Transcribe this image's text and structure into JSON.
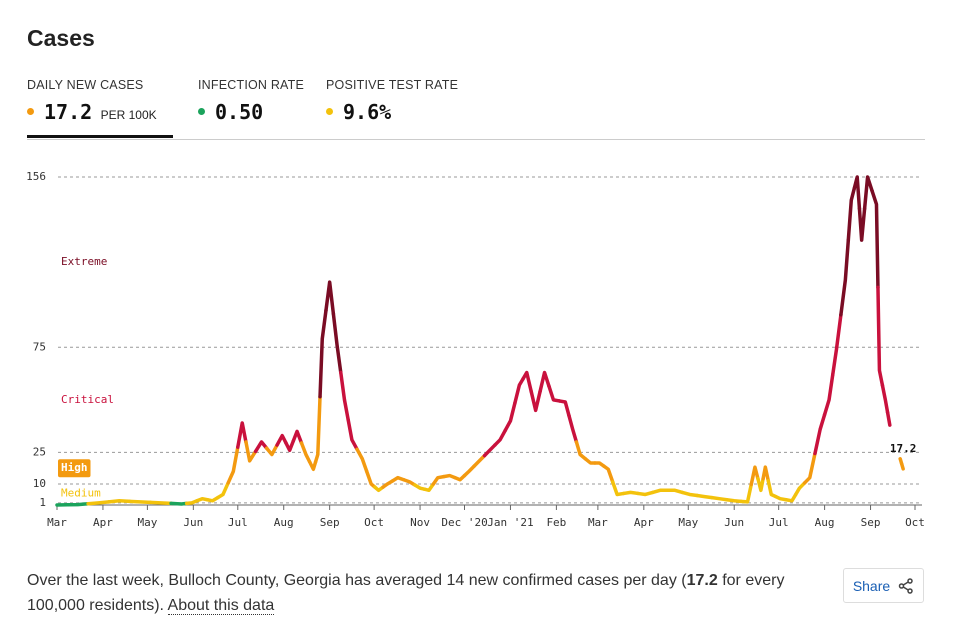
{
  "header": {
    "title": "Cases"
  },
  "tabs": [
    {
      "label": "DAILY NEW CASES",
      "value": "17.2",
      "unit": "PER 100K"
    },
    {
      "label": "INFECTION RATE",
      "value": "0.50"
    },
    {
      "label": "POSITIVE TEST RATE",
      "value": "9.6%"
    }
  ],
  "chart_data": {
    "type": "line",
    "x": [
      0,
      14,
      28,
      42,
      56,
      70,
      84,
      91,
      98,
      105,
      112,
      119,
      125,
      130,
      138,
      145,
      152,
      157,
      162,
      168,
      173,
      176,
      179,
      184,
      189,
      194,
      199,
      206,
      212,
      217,
      223,
      230,
      238,
      245,
      251,
      257,
      265,
      272,
      278,
      285,
      292,
      299,
      306,
      312,
      317,
      323,
      329,
      335,
      343,
      348,
      353,
      360,
      366,
      372,
      378,
      387,
      397,
      407,
      417,
      427,
      437,
      447,
      457,
      466,
      471,
      475,
      478,
      482,
      488,
      496,
      501,
      508,
      515,
      521,
      526,
      532,
      536,
      540,
      543,
      547,
      553,
      555,
      559,
      562,
      566,
      569,
      571
    ],
    "values": [
      0,
      0.2,
      1,
      2,
      1.5,
      1,
      0.5,
      1,
      3,
      2,
      5,
      16,
      39,
      21,
      30,
      24,
      33,
      26,
      35,
      24,
      17,
      24,
      79,
      106,
      76,
      50,
      31,
      22,
      10,
      7,
      10,
      13,
      11,
      8,
      7,
      13,
      14,
      12,
      16,
      21,
      26,
      31,
      40,
      57,
      63,
      45,
      63,
      50,
      49,
      36,
      24,
      20,
      20,
      17,
      5,
      6,
      5,
      7,
      7,
      5,
      4,
      3,
      2,
      1.5,
      18,
      7,
      18,
      5,
      3,
      2,
      8,
      13,
      36,
      50,
      74,
      107,
      145,
      156,
      126,
      156,
      143,
      64,
      50,
      38,
      null,
      22,
      17.2
    ],
    "xlim": [
      0,
      579
    ],
    "xticks": [
      {
        "value": 0,
        "label": "Mar"
      },
      {
        "value": 31,
        "label": "Apr"
      },
      {
        "value": 61,
        "label": "May"
      },
      {
        "value": 92,
        "label": "Jun"
      },
      {
        "value": 122,
        "label": "Jul"
      },
      {
        "value": 153,
        "label": "Aug"
      },
      {
        "value": 184,
        "label": "Sep"
      },
      {
        "value": 214,
        "label": "Oct"
      },
      {
        "value": 245,
        "label": "Nov"
      },
      {
        "value": 275,
        "label": "Dec '20"
      },
      {
        "value": 306,
        "label": "Jan '21"
      },
      {
        "value": 337,
        "label": "Feb"
      },
      {
        "value": 365,
        "label": "Mar"
      },
      {
        "value": 396,
        "label": "Apr"
      },
      {
        "value": 426,
        "label": "May"
      },
      {
        "value": 457,
        "label": "Jun"
      },
      {
        "value": 487,
        "label": "Jul"
      },
      {
        "value": 518,
        "label": "Aug"
      },
      {
        "value": 549,
        "label": "Sep"
      },
      {
        "value": 579,
        "label": "Oct"
      }
    ],
    "ylim": [
      0,
      156
    ],
    "yticks": [
      1,
      10,
      25,
      75,
      156
    ],
    "grid": true,
    "levels": [
      {
        "name": "Extreme",
        "min": 75,
        "color": "#7a0c24"
      },
      {
        "name": "Critical",
        "min": 25,
        "color": "#c9113d"
      },
      {
        "name": "High",
        "min": 10,
        "color": "#f39a10",
        "boxed": true
      },
      {
        "name": "Medium",
        "min": 1,
        "color": "#f3c20c"
      }
    ],
    "base_color": "#1ba35c",
    "labeled_point": 86
  },
  "summary": {
    "before": "Over the last week, Bulloch County, Georgia has averaged 14 new confirmed cases per day (",
    "highlight": "17.2",
    "after": " for every 100,000 residents). ",
    "link": "About this data"
  },
  "share": "Share"
}
